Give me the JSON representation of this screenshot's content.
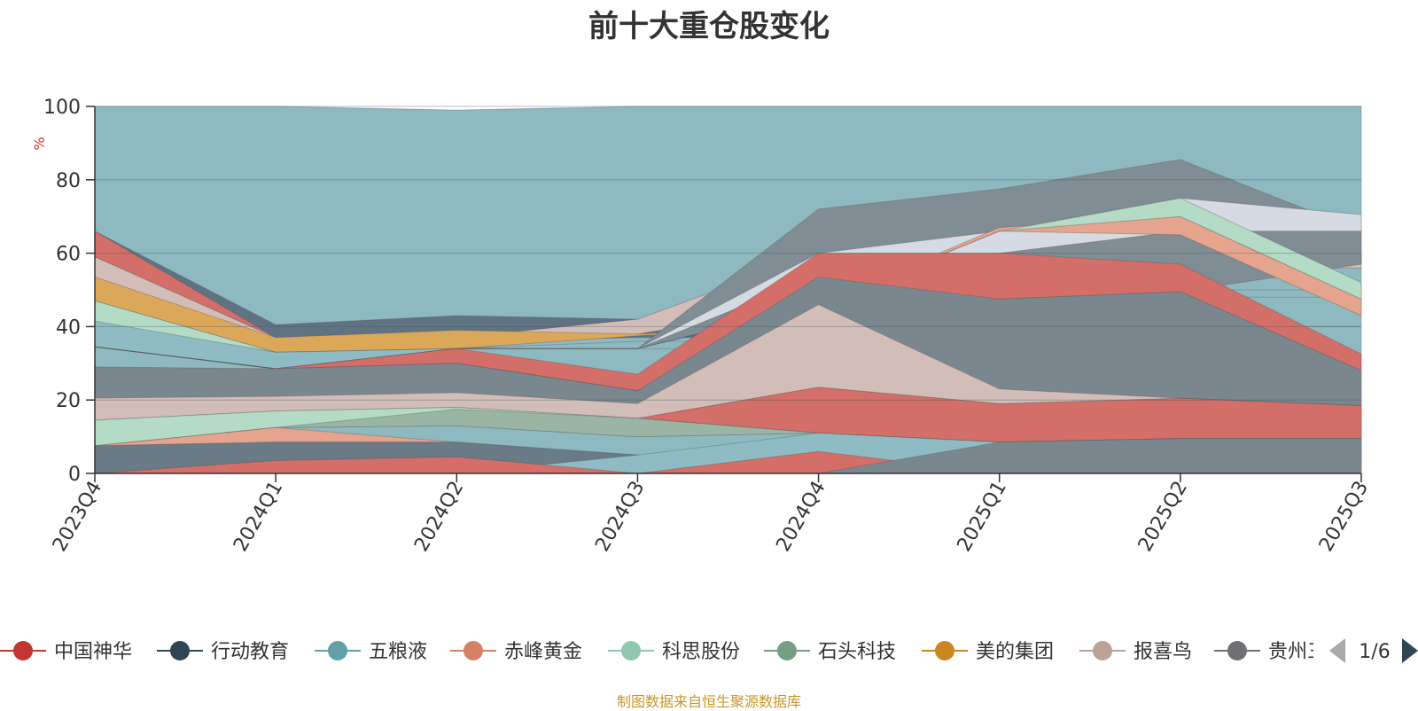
{
  "chart_data": {
    "type": "area",
    "title": "前十大重仓股变化",
    "ylabel": "%",
    "ylim": [
      0,
      100
    ],
    "yticks": [
      0,
      20,
      40,
      60,
      80,
      100
    ],
    "categories": [
      "2023Q4",
      "2024Q1",
      "2024Q2",
      "2024Q3",
      "2024Q4",
      "2025Q1",
      "2025Q2",
      "2025Q3"
    ],
    "note": "Layered area shapes; each shape listed with lower and upper boundary values (in %) per quarter, drawn in order.",
    "layers": [
      {
        "name": "teal background",
        "color": "#8fb9c0",
        "lower": [
          0,
          0,
          0,
          0,
          0,
          0,
          0,
          0
        ],
        "upper": [
          100,
          100,
          99,
          100,
          100,
          100,
          100,
          100
        ]
      },
      {
        "name": "dark slate band",
        "color": "#5f7382",
        "lower": [
          34.5,
          35.5,
          36,
          37,
          37,
          60,
          57,
          57
        ],
        "upper": [
          66,
          40.5,
          43,
          42,
          42,
          60,
          57,
          57
        ]
      },
      {
        "name": "red top band",
        "color": "#d46e68",
        "lower": [
          59,
          37,
          37,
          38,
          40,
          55,
          57,
          57
        ],
        "upper": [
          66,
          37,
          37,
          38,
          40,
          60,
          57,
          57
        ]
      },
      {
        "name": "rose band",
        "color": "#d2bdb8",
        "lower": [
          53,
          33,
          34,
          38,
          46,
          47,
          56,
          56
        ],
        "upper": [
          59,
          37,
          37,
          42,
          60,
          66,
          70,
          60
        ]
      },
      {
        "name": "orange band",
        "color": "#dba85a",
        "lower": [
          47,
          33,
          34,
          37.5,
          40,
          40,
          50,
          50
        ],
        "upper": [
          53.5,
          37,
          39,
          38,
          40,
          40,
          50,
          50
        ]
      },
      {
        "name": "mint band",
        "color": "#b3dbc6",
        "lower": [
          41,
          33,
          34,
          36,
          36,
          36,
          48,
          48
        ],
        "upper": [
          47,
          33,
          34,
          36,
          36,
          36,
          48,
          48
        ]
      },
      {
        "name": "light teal band",
        "color": "#8fbcc4",
        "lower": [
          34.5,
          28.5,
          34,
          34,
          34,
          34,
          40,
          40
        ],
        "upper": [
          41.5,
          33,
          34,
          34,
          34,
          34,
          40,
          40
        ]
      },
      {
        "name": "gray upper band",
        "color": "#808d95",
        "lower": [
          34.5,
          28.5,
          34,
          34,
          46,
          47.5,
          49.5,
          57
        ],
        "upper": [
          34.5,
          28.5,
          34,
          34,
          72,
          77.5,
          85.5,
          66
        ]
      },
      {
        "name": "pale lavender band",
        "color": "#d6dbe3",
        "lower": [
          34.5,
          28.5,
          34,
          34,
          54,
          60,
          66,
          66
        ],
        "upper": [
          34.5,
          28.5,
          34,
          34,
          60,
          66,
          75,
          70.5
        ]
      },
      {
        "name": "salmon band",
        "color": "#e4a48e",
        "lower": [
          34.5,
          28.5,
          34,
          34,
          46,
          66,
          65,
          43
        ],
        "upper": [
          34.5,
          28.5,
          34,
          34,
          46,
          67,
          70,
          47.5
        ]
      },
      {
        "name": "mint upper band",
        "color": "#b3dbc6",
        "lower": [
          34.5,
          28.5,
          34,
          34,
          46,
          66,
          70,
          47.5
        ],
        "upper": [
          34.5,
          28.5,
          34,
          34,
          46,
          66,
          75,
          52
        ]
      },
      {
        "name": "red mid band",
        "color": "#d46e68",
        "lower": [
          34.5,
          28.5,
          30,
          22.5,
          46,
          47.5,
          49.5,
          28
        ],
        "upper": [
          34.5,
          28.5,
          34,
          27,
          60,
          60,
          57,
          32.5
        ]
      },
      {
        "name": "gray-green band",
        "color": "#9bb5a5",
        "lower": [
          34.5,
          28.5,
          30,
          22.5,
          46,
          33.5,
          33,
          28
        ],
        "upper": [
          34.5,
          28.5,
          30,
          22.5,
          46,
          37.5,
          40,
          28
        ]
      },
      {
        "name": "gray lower band",
        "color": "#7b878f",
        "lower": [
          20,
          19,
          18,
          15,
          19,
          8.5,
          9.5,
          9.5
        ],
        "upper": [
          29,
          28.5,
          30,
          22.5,
          53.5,
          47.5,
          49.5,
          28
        ]
      },
      {
        "name": "red low band",
        "color": "#d46e68",
        "lower": [
          20,
          19,
          18,
          15,
          11,
          8.5,
          9.5,
          9.5
        ],
        "upper": [
          20,
          19,
          18,
          15,
          23.5,
          19,
          20.5,
          18.5
        ]
      },
      {
        "name": "pink left band",
        "color": "#d2bdb8",
        "lower": [
          14.5,
          17,
          18,
          15,
          23.5,
          19,
          20.5,
          18.5
        ],
        "upper": [
          20.5,
          21,
          22,
          19,
          46,
          23,
          20.5,
          18.5
        ]
      },
      {
        "name": "mint lower band",
        "color": "#b3dbc6",
        "lower": [
          7.5,
          12.5,
          13,
          10,
          11,
          8.5,
          9.5,
          9.5
        ],
        "upper": [
          14.5,
          17,
          18,
          15,
          11,
          8.5,
          9.5,
          9.5
        ]
      },
      {
        "name": "green-gray band",
        "color": "#9bb5a5",
        "lower": [
          7.5,
          12.5,
          13,
          10,
          11,
          8.5,
          9.5,
          9.5
        ],
        "upper": [
          7.5,
          12.5,
          17.5,
          15,
          11,
          8.5,
          9.5,
          9.5
        ]
      },
      {
        "name": "salmon low band",
        "color": "#e4a48e",
        "lower": [
          7.5,
          8.5,
          8.5,
          5,
          0,
          0,
          0,
          0
        ],
        "upper": [
          7.5,
          12.5,
          8.5,
          5,
          0,
          0,
          0,
          0
        ]
      },
      {
        "name": "dark slate bottom band",
        "color": "#6a7a86",
        "lower": [
          0,
          3.5,
          4.5,
          0,
          0,
          0,
          0,
          0
        ],
        "upper": [
          7.5,
          8.5,
          8.5,
          5,
          0,
          0,
          0,
          0
        ]
      },
      {
        "name": "teal bottom band",
        "color": "#8fbcc4",
        "lower": [
          0,
          0,
          0,
          0,
          0,
          0,
          0,
          0
        ],
        "upper": [
          0,
          0,
          0,
          5,
          11,
          8.5,
          9.5,
          9.5
        ]
      },
      {
        "name": "red bottom band",
        "color": "#d46e68",
        "lower": [
          0,
          0,
          0,
          0,
          0,
          0,
          0,
          0
        ],
        "upper": [
          0,
          3.5,
          4.5,
          0,
          6,
          0,
          0,
          0
        ]
      },
      {
        "name": "gray bottom band",
        "color": "#7b878f",
        "lower": [
          0,
          0,
          0,
          0,
          0,
          0,
          0,
          0
        ],
        "upper": [
          0,
          0,
          0,
          0,
          0,
          8.5,
          9.5,
          9.5
        ]
      }
    ],
    "legend": [
      {
        "name": "中国神华",
        "color": "#c23531"
      },
      {
        "name": "行动教育",
        "color": "#2f4554"
      },
      {
        "name": "五粮液",
        "color": "#61a0a8"
      },
      {
        "name": "赤峰黄金",
        "color": "#d48265"
      },
      {
        "name": "科思股份",
        "color": "#91c7ae"
      },
      {
        "name": "石头科技",
        "color": "#749f83"
      },
      {
        "name": "美的集团",
        "color": "#ca8622"
      },
      {
        "name": "报喜鸟",
        "color": "#bda29a"
      },
      {
        "name": "贵州三",
        "color": "#6e7074"
      }
    ],
    "legend_page": "1/6"
  },
  "source_note": "制图数据来自恒生聚源数据库"
}
